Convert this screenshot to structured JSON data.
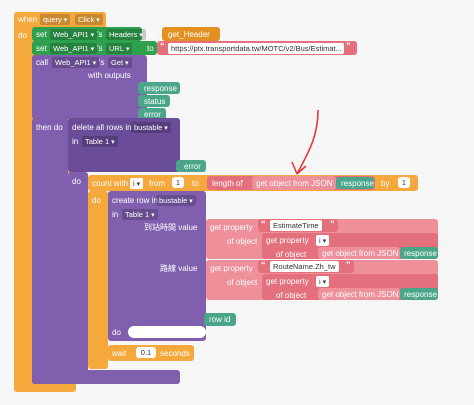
{
  "event": {
    "when": "when",
    "component": "query",
    "event_name": "Click",
    "do": "do"
  },
  "set_headers": {
    "set": "set",
    "component": "Web_API1",
    "dot": "'s",
    "property": "Headers",
    "to": "to",
    "value": "get_Header"
  },
  "set_url": {
    "set": "set",
    "component": "Web_API1",
    "dot": "'s",
    "property": "URL",
    "to": "to",
    "value": "https://ptx.transportdata.tw/MOTC/v2/Bus/Estimat..."
  },
  "call_get": {
    "call": "call",
    "component": "Web_API1",
    "dot": "'s",
    "method": "Get",
    "with_outputs": "with outputs",
    "outputs": [
      "response",
      "status",
      "error"
    ]
  },
  "then_do": {
    "label": "then do",
    "delete_rows": "delete all rows in",
    "table_component": "bustable",
    "in": "in",
    "table": "Table 1",
    "error": "error",
    "do": "do"
  },
  "count_with": {
    "label": "count with",
    "var": "i",
    "from": "from",
    "from_value": "1",
    "to": "to",
    "length_of": "length of",
    "get_object_from_json": "get object from JSON",
    "response": "response",
    "by": "by",
    "by_value": "1",
    "do": "do"
  },
  "create_row": {
    "label": "create row in",
    "component": "bustable",
    "in": "in",
    "table": "Table 1",
    "field1_label": "到站時間 value",
    "field2_label": "路線 value",
    "get_property": "get property",
    "of_object": "of object",
    "estimate_time": "EstimateTime",
    "route_name": "RouteName.Zh_tw",
    "i_var": "i",
    "get_object_from_json": "get object from JSON",
    "response": "response",
    "row_id": "row id",
    "do": "do"
  },
  "wait": {
    "label": "wait",
    "value": "0.1",
    "unit": "seconds"
  }
}
